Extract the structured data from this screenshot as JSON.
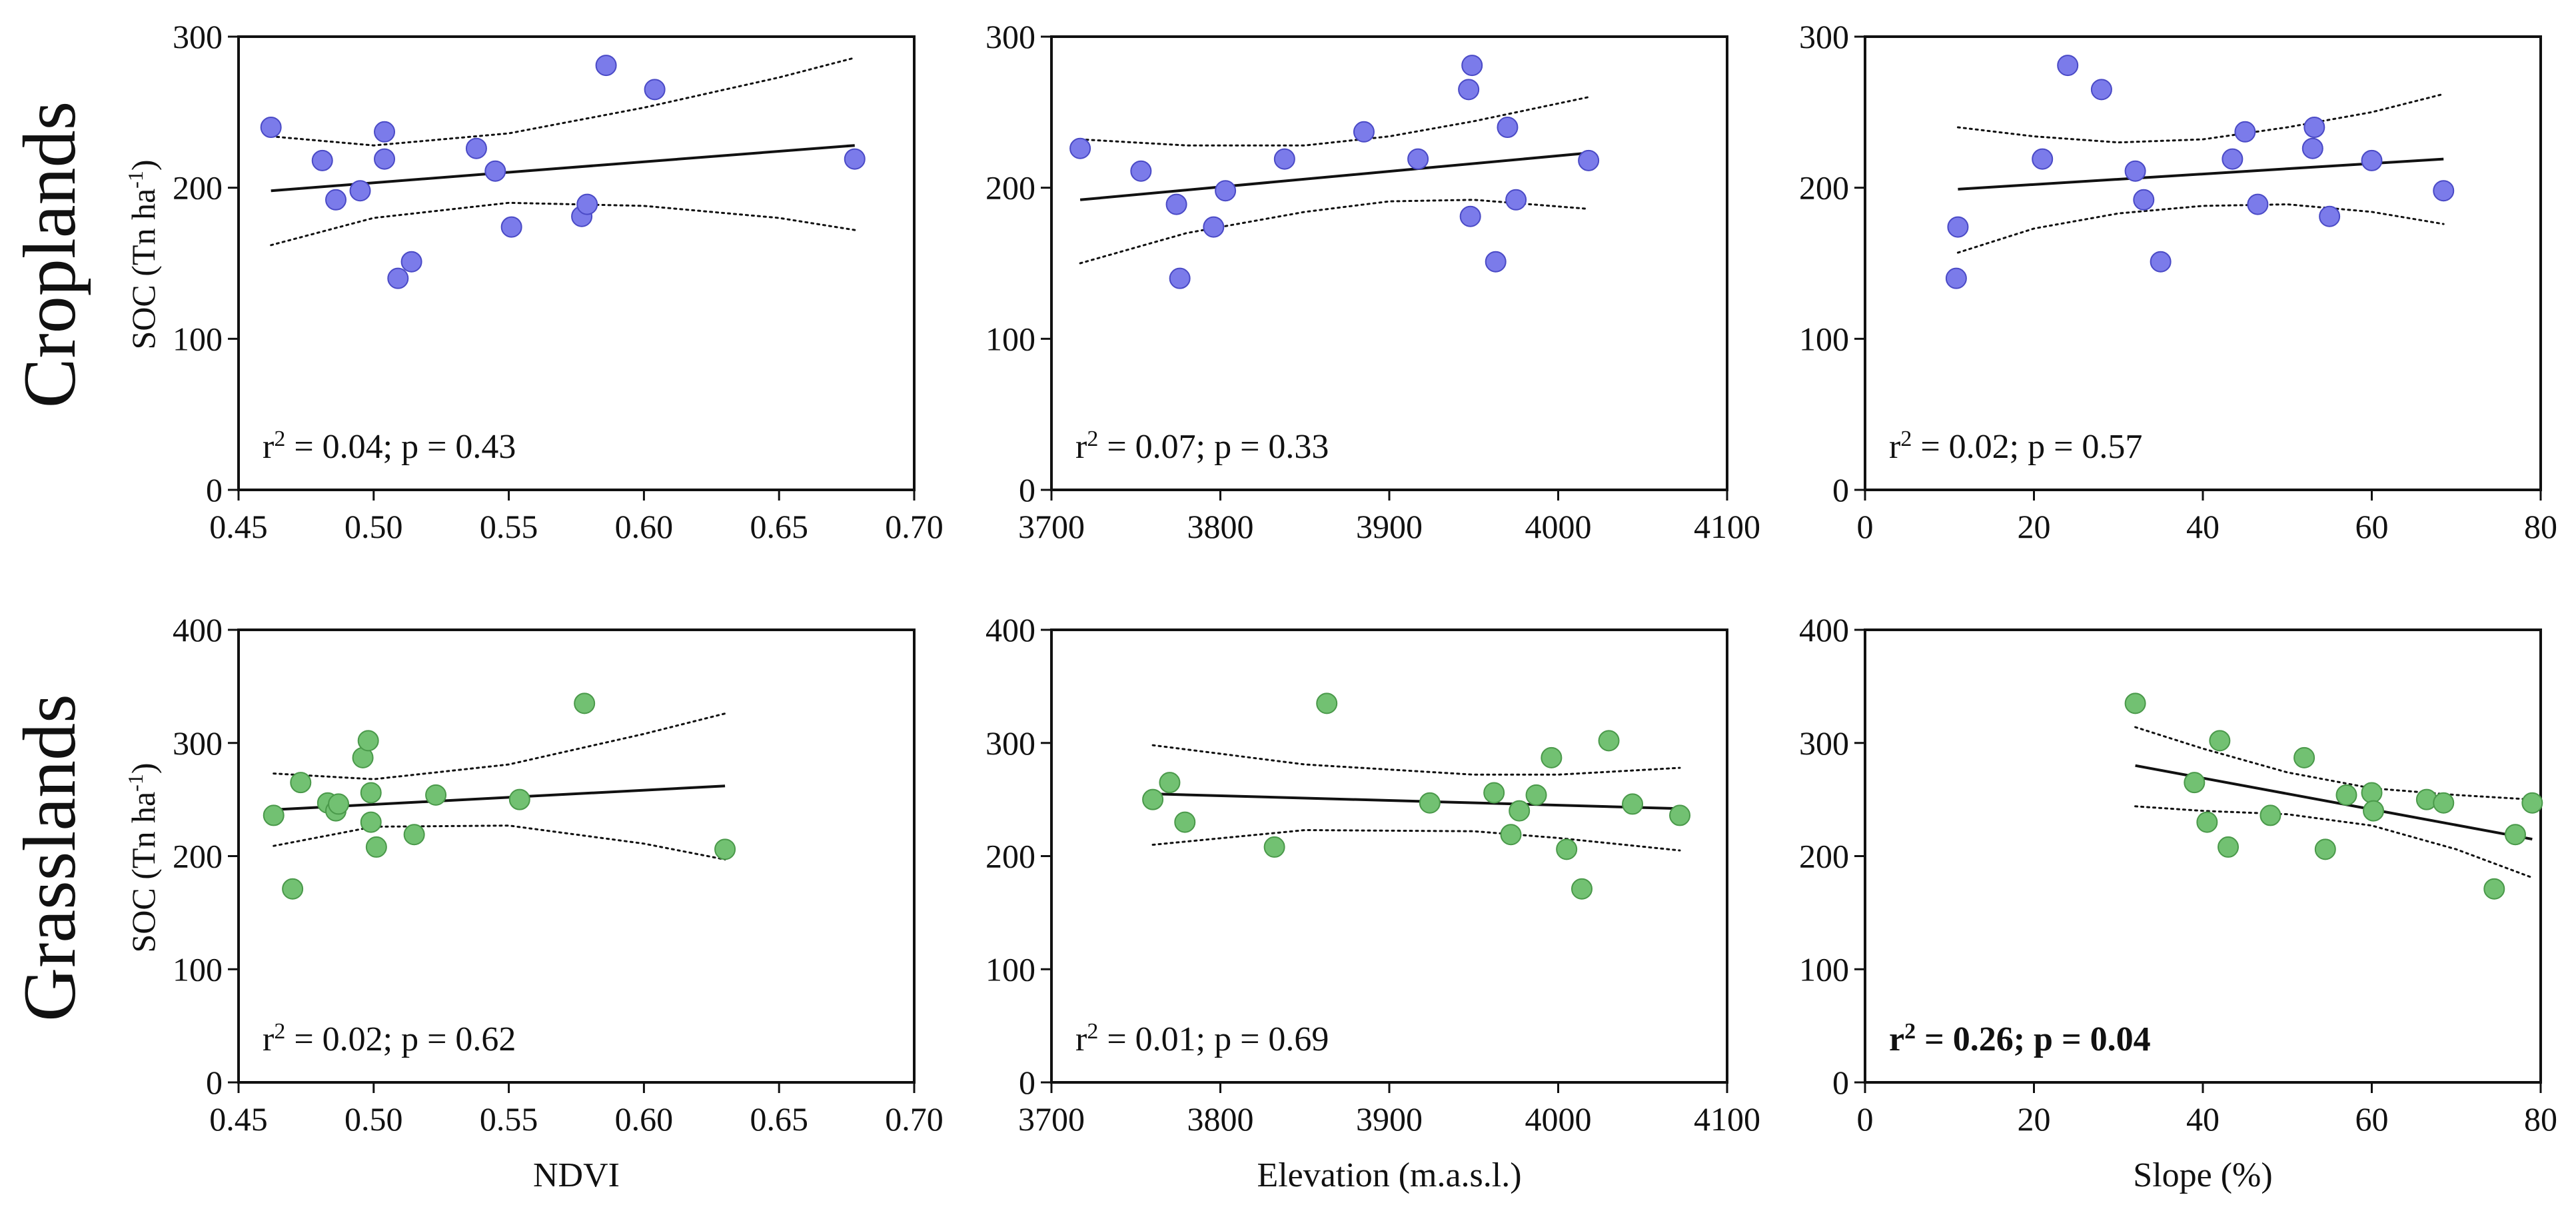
{
  "figure": {
    "row_titles": [
      "Croplands",
      "Grasslands"
    ],
    "ylabel": {
      "main": "SOC (Tn ha",
      "sup": "-1",
      "close": ")"
    },
    "xlabels": [
      "NDVI",
      "Elevation  (m.a.s.l.)",
      "Slope (%)"
    ]
  },
  "colors": {
    "croplands_point": "#7b7bea",
    "croplands_edge": "#4a4ac6",
    "grasslands_point": "#72c172",
    "grasslands_edge": "#4a994a",
    "axes": "#111111"
  },
  "chart_data": [
    {
      "id": "crop-ndvi",
      "type": "scatter",
      "row": "Croplands",
      "xlabel": "NDVI",
      "ylabel": "SOC (Tn ha-1)",
      "xlim": [
        0.45,
        0.7
      ],
      "ylim": [
        0,
        300
      ],
      "xticks": [
        "0.45",
        "0.50",
        "0.55",
        "0.60",
        "0.65",
        "0.70"
      ],
      "yticks": [
        "0",
        "100",
        "200",
        "300"
      ],
      "points": [
        [
          0.462,
          240
        ],
        [
          0.481,
          218
        ],
        [
          0.486,
          192
        ],
        [
          0.495,
          198
        ],
        [
          0.504,
          219
        ],
        [
          0.504,
          237
        ],
        [
          0.509,
          140
        ],
        [
          0.514,
          151
        ],
        [
          0.538,
          226
        ],
        [
          0.545,
          211
        ],
        [
          0.551,
          174
        ],
        [
          0.577,
          181
        ],
        [
          0.579,
          189
        ],
        [
          0.586,
          281
        ],
        [
          0.604,
          265
        ],
        [
          0.678,
          219
        ]
      ],
      "fit": {
        "x": [
          0.462,
          0.678
        ],
        "y": [
          198,
          228
        ]
      },
      "ci_upper": {
        "x": [
          0.462,
          0.5,
          0.55,
          0.6,
          0.65,
          0.678
        ],
        "y": [
          234,
          228,
          236,
          253,
          273,
          286
        ]
      },
      "ci_lower": {
        "x": [
          0.462,
          0.5,
          0.55,
          0.6,
          0.65,
          0.678
        ],
        "y": [
          162,
          180,
          190,
          188,
          180,
          172
        ]
      },
      "stat": {
        "r2": "0.04",
        "p": "0.43",
        "bold": false
      }
    },
    {
      "id": "crop-elev",
      "type": "scatter",
      "row": "Croplands",
      "xlabel": "Elevation  (m.a.s.l.)",
      "ylabel": "SOC (Tn ha-1)",
      "xlim": [
        3700,
        4100
      ],
      "ylim": [
        0,
        300
      ],
      "xticks": [
        "3700",
        "3800",
        "3900",
        "4000",
        "4100"
      ],
      "yticks": [
        "0",
        "100",
        "200",
        "300"
      ],
      "points": [
        [
          3717,
          226
        ],
        [
          3753,
          211
        ],
        [
          3774,
          189
        ],
        [
          3776,
          140
        ],
        [
          3796,
          174
        ],
        [
          3803,
          198
        ],
        [
          3838,
          219
        ],
        [
          3885,
          237
        ],
        [
          3917,
          219
        ],
        [
          3947,
          265
        ],
        [
          3948,
          181
        ],
        [
          3949,
          281
        ],
        [
          3963,
          151
        ],
        [
          3970,
          240
        ],
        [
          3975,
          192
        ],
        [
          4018,
          218
        ]
      ],
      "fit": {
        "x": [
          3717,
          4018
        ],
        "y": [
          192,
          223
        ]
      },
      "ci_upper": {
        "x": [
          3717,
          3780,
          3850,
          3900,
          3950,
          4018
        ],
        "y": [
          232,
          228,
          228,
          234,
          244,
          260
        ]
      },
      "ci_lower": {
        "x": [
          3717,
          3780,
          3850,
          3900,
          3950,
          4018
        ],
        "y": [
          150,
          170,
          184,
          191,
          192,
          186
        ]
      },
      "stat": {
        "r2": "0.07",
        "p": "0.33",
        "bold": false
      }
    },
    {
      "id": "crop-slope",
      "type": "scatter",
      "row": "Croplands",
      "xlabel": "Slope (%)",
      "ylabel": "SOC (Tn ha-1)",
      "xlim": [
        0,
        80
      ],
      "ylim": [
        0,
        300
      ],
      "xticks": [
        "0",
        "20",
        "40",
        "60",
        "80"
      ],
      "yticks": [
        "0",
        "100",
        "200",
        "300"
      ],
      "points": [
        [
          10.8,
          140
        ],
        [
          11,
          174
        ],
        [
          21,
          219
        ],
        [
          24,
          281
        ],
        [
          28,
          265
        ],
        [
          32,
          211
        ],
        [
          33,
          192
        ],
        [
          35,
          151
        ],
        [
          43.5,
          219
        ],
        [
          45,
          237
        ],
        [
          46.5,
          189
        ],
        [
          53,
          226
        ],
        [
          53.2,
          240
        ],
        [
          55,
          181
        ],
        [
          60,
          218
        ],
        [
          68.5,
          198
        ]
      ],
      "fit": {
        "x": [
          11,
          68.5
        ],
        "y": [
          199,
          219
        ]
      },
      "ci_upper": {
        "x": [
          11,
          20,
          30,
          40,
          50,
          60,
          68.5
        ],
        "y": [
          240,
          234,
          230,
          232,
          240,
          250,
          262
        ]
      },
      "ci_lower": {
        "x": [
          11,
          20,
          30,
          40,
          50,
          60,
          68.5
        ],
        "y": [
          157,
          173,
          183,
          188,
          189,
          184,
          176
        ]
      },
      "stat": {
        "r2": "0.02",
        "p": "0.57",
        "bold": false
      }
    },
    {
      "id": "grass-ndvi",
      "type": "scatter",
      "row": "Grasslands",
      "xlabel": "NDVI",
      "ylabel": "SOC (Tn ha-1)",
      "xlim": [
        0.45,
        0.7
      ],
      "ylim": [
        0,
        400
      ],
      "xticks": [
        "0.45",
        "0.50",
        "0.55",
        "0.60",
        "0.65",
        "0.70"
      ],
      "yticks": [
        "0",
        "100",
        "200",
        "300",
        "400"
      ],
      "points": [
        [
          0.463,
          236
        ],
        [
          0.47,
          171
        ],
        [
          0.473,
          265
        ],
        [
          0.483,
          247
        ],
        [
          0.486,
          240
        ],
        [
          0.487,
          246
        ],
        [
          0.496,
          287
        ],
        [
          0.498,
          302
        ],
        [
          0.499,
          230
        ],
        [
          0.499,
          256
        ],
        [
          0.501,
          208
        ],
        [
          0.515,
          219
        ],
        [
          0.523,
          254
        ],
        [
          0.554,
          250
        ],
        [
          0.578,
          335
        ],
        [
          0.63,
          206
        ]
      ],
      "fit": {
        "x": [
          0.463,
          0.63
        ],
        "y": [
          241,
          262
        ]
      },
      "ci_upper": {
        "x": [
          0.463,
          0.5,
          0.55,
          0.6,
          0.63
        ],
        "y": [
          273,
          268,
          281,
          308,
          326
        ]
      },
      "ci_lower": {
        "x": [
          0.463,
          0.5,
          0.55,
          0.6,
          0.63
        ],
        "y": [
          209,
          226,
          227,
          211,
          197
        ]
      },
      "stat": {
        "r2": "0.02",
        "p": "0.62",
        "bold": false
      }
    },
    {
      "id": "grass-elev",
      "type": "scatter",
      "row": "Grasslands",
      "xlabel": "Elevation  (m.a.s.l.)",
      "ylabel": "SOC (Tn ha-1)",
      "xlim": [
        3700,
        4100
      ],
      "ylim": [
        0,
        400
      ],
      "xticks": [
        "3700",
        "3800",
        "3900",
        "4000",
        "4100"
      ],
      "yticks": [
        "0",
        "100",
        "200",
        "300",
        "400"
      ],
      "points": [
        [
          3760,
          250
        ],
        [
          3770,
          265
        ],
        [
          3779,
          230
        ],
        [
          3832,
          208
        ],
        [
          3863,
          335
        ],
        [
          3924,
          247
        ],
        [
          3962,
          256
        ],
        [
          3972,
          219
        ],
        [
          3977,
          240
        ],
        [
          3987,
          254
        ],
        [
          3996,
          287
        ],
        [
          4005,
          206
        ],
        [
          4014,
          171
        ],
        [
          4030,
          302
        ],
        [
          4044,
          246
        ],
        [
          4072,
          236
        ]
      ],
      "fit": {
        "x": [
          3760,
          4072
        ],
        "y": [
          255,
          242
        ]
      },
      "ci_upper": {
        "x": [
          3760,
          3850,
          3950,
          4000,
          4072
        ],
        "y": [
          298,
          281,
          272,
          272,
          278
        ]
      },
      "ci_lower": {
        "x": [
          3760,
          3850,
          3950,
          4000,
          4072
        ],
        "y": [
          210,
          223,
          222,
          216,
          205
        ]
      },
      "stat": {
        "r2": "0.01",
        "p": "0.69",
        "bold": false
      }
    },
    {
      "id": "grass-slope",
      "type": "scatter",
      "row": "Grasslands",
      "xlabel": "Slope (%)",
      "ylabel": "SOC (Tn ha-1)",
      "xlim": [
        0,
        80
      ],
      "ylim": [
        0,
        400
      ],
      "xticks": [
        "0",
        "20",
        "40",
        "60",
        "80"
      ],
      "yticks": [
        "0",
        "100",
        "200",
        "300",
        "400"
      ],
      "points": [
        [
          32,
          335
        ],
        [
          39,
          265
        ],
        [
          40.5,
          230
        ],
        [
          42,
          302
        ],
        [
          43,
          208
        ],
        [
          48,
          236
        ],
        [
          52,
          287
        ],
        [
          54.5,
          206
        ],
        [
          57,
          254
        ],
        [
          60,
          256
        ],
        [
          60.2,
          240
        ],
        [
          66.5,
          250
        ],
        [
          68.5,
          247
        ],
        [
          74.5,
          171
        ],
        [
          77,
          219
        ],
        [
          79,
          247
        ]
      ],
      "fit": {
        "x": [
          32,
          79
        ],
        "y": [
          280,
          215
        ]
      },
      "ci_upper": {
        "x": [
          32,
          40,
          50,
          60,
          70,
          79
        ],
        "y": [
          314,
          295,
          274,
          260,
          254,
          250
        ]
      },
      "ci_lower": {
        "x": [
          32,
          40,
          50,
          60,
          70,
          79
        ],
        "y": [
          244,
          240,
          237,
          227,
          206,
          181
        ]
      },
      "stat": {
        "r2": "0.26",
        "p": "0.04",
        "bold": true
      }
    }
  ]
}
